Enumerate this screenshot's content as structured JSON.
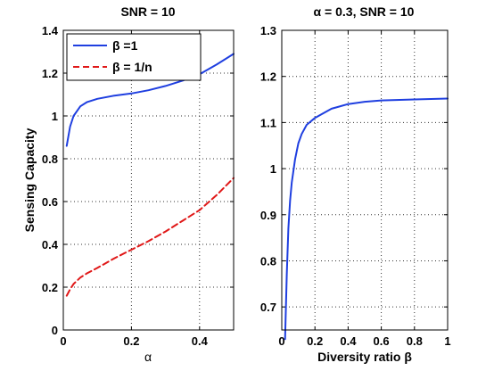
{
  "chart_data": [
    {
      "type": "line",
      "title": "SNR  = 10",
      "xlabel": "α",
      "ylabel": "Sensing Capacity",
      "xlim": [
        0,
        0.5
      ],
      "ylim": [
        0,
        1.4
      ],
      "xticks": [
        0,
        0.2,
        0.4
      ],
      "xtick_labels": [
        "0",
        "0.2",
        "0.4"
      ],
      "yticks": [
        0,
        0.2,
        0.4,
        0.6,
        0.8,
        1,
        1.2,
        1.4
      ],
      "ytick_labels": [
        "0",
        "0.2",
        "0.4",
        "0.6",
        "0.8",
        "1",
        "1.2",
        "1.4"
      ],
      "grid": true,
      "legend_position": "top-left",
      "series": [
        {
          "name": "β =1",
          "color": "#1f3fe0",
          "style": "solid",
          "x": [
            0.01,
            0.02,
            0.03,
            0.05,
            0.07,
            0.1,
            0.15,
            0.2,
            0.25,
            0.3,
            0.35,
            0.4,
            0.45,
            0.5
          ],
          "y": [
            0.86,
            0.95,
            1.0,
            1.045,
            1.065,
            1.08,
            1.095,
            1.105,
            1.12,
            1.14,
            1.165,
            1.195,
            1.24,
            1.29
          ]
        },
        {
          "name": "β = 1/n",
          "color": "#e01818",
          "style": "dashed",
          "x": [
            0.01,
            0.02,
            0.03,
            0.05,
            0.07,
            0.1,
            0.15,
            0.2,
            0.25,
            0.3,
            0.35,
            0.4,
            0.45,
            0.5
          ],
          "y": [
            0.16,
            0.19,
            0.215,
            0.245,
            0.265,
            0.29,
            0.335,
            0.375,
            0.415,
            0.46,
            0.51,
            0.56,
            0.63,
            0.71
          ]
        }
      ]
    },
    {
      "type": "line",
      "title": "α = 0.3, SNR = 10",
      "xlabel": "Diversity ratio β",
      "ylabel": "",
      "xlim": [
        0,
        1
      ],
      "ylim": [
        0.65,
        1.3
      ],
      "xticks": [
        0,
        0.2,
        0.4,
        0.6,
        0.8,
        1
      ],
      "xtick_labels": [
        "0",
        "0.2",
        "0.4",
        "0.6",
        "0.8",
        "1"
      ],
      "yticks": [
        0.7,
        0.8,
        0.9,
        1,
        1.1,
        1.2,
        1.3
      ],
      "ytick_labels": [
        "0.7",
        "0.8",
        "0.9",
        "1",
        "1.1",
        "1.2",
        "1.3"
      ],
      "grid": true,
      "series": [
        {
          "color": "#1f3fe0",
          "style": "solid",
          "x": [
            0.02,
            0.03,
            0.04,
            0.05,
            0.06,
            0.08,
            0.1,
            0.12,
            0.15,
            0.2,
            0.3,
            0.4,
            0.5,
            0.6,
            0.8,
            1.0
          ],
          "y": [
            0.63,
            0.77,
            0.87,
            0.93,
            0.97,
            1.02,
            1.055,
            1.075,
            1.095,
            1.11,
            1.13,
            1.14,
            1.145,
            1.148,
            1.15,
            1.152
          ]
        }
      ]
    }
  ]
}
